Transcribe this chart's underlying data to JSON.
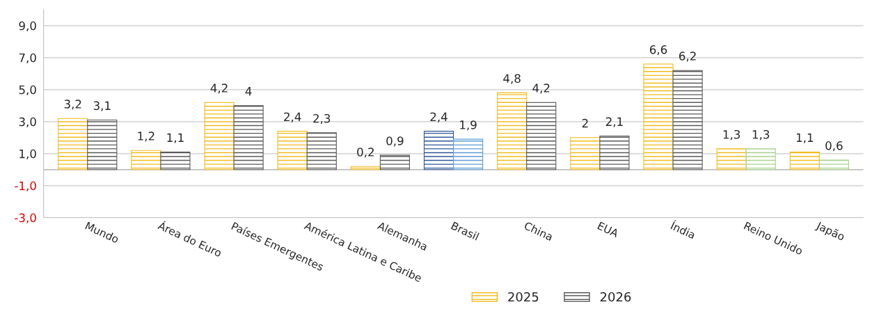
{
  "chart_data": {
    "type": "bar",
    "categories": [
      "Mundo",
      "Área do Euro",
      "Países Emergentes",
      "América Latina e Caribe",
      "Alemanha",
      "Brasil",
      "China",
      "EUA",
      "Índia",
      "Reino Unido",
      "Japão"
    ],
    "series": [
      {
        "name": "2025",
        "color": "#f2bb1d",
        "colors": [
          "#f2bb1d",
          "#f2bb1d",
          "#f2bb1d",
          "#f2bb1d",
          "#f2bb1d",
          "#2f5597",
          "#f2bb1d",
          "#f2bb1d",
          "#f2bb1d",
          "#f2bb1d",
          "#f2bb1d"
        ],
        "values": [
          3.2,
          1.2,
          4.2,
          2.4,
          0.2,
          2.4,
          4.8,
          2,
          6.6,
          1.3,
          1.1
        ],
        "value_labels": [
          "3,2",
          "1,2",
          "4,2",
          "2,4",
          "0,2",
          "2,4",
          "4,8",
          "2",
          "6,6",
          "1,3",
          "1,1"
        ]
      },
      {
        "name": "2026",
        "color": "#595959",
        "colors": [
          "#595959",
          "#595959",
          "#595959",
          "#595959",
          "#595959",
          "#5b9bd5",
          "#595959",
          "#595959",
          "#595959",
          "#a9d18e",
          "#a9d18e"
        ],
        "values": [
          3.1,
          1.1,
          4,
          2.3,
          0.9,
          1.9,
          4.2,
          2.1,
          6.2,
          1.3,
          0.6
        ],
        "value_labels": [
          "3,1",
          "1,1",
          "4",
          "2,3",
          "0,9",
          "1,9",
          "4,2",
          "2,1",
          "6,2",
          "1,3",
          "0,6"
        ]
      }
    ],
    "ylim": [
      -3,
      10
    ],
    "yticks": [
      {
        "value": -3,
        "label": "-3,0"
      },
      {
        "value": -1,
        "label": "-1,0"
      },
      {
        "value": 1,
        "label": "1,0"
      },
      {
        "value": 3,
        "label": "3,0"
      },
      {
        "value": 5,
        "label": "5,0"
      },
      {
        "value": 7,
        "label": "7,0"
      },
      {
        "value": 9,
        "label": "9,0"
      }
    ],
    "grid": "y",
    "legend": "bottom"
  }
}
